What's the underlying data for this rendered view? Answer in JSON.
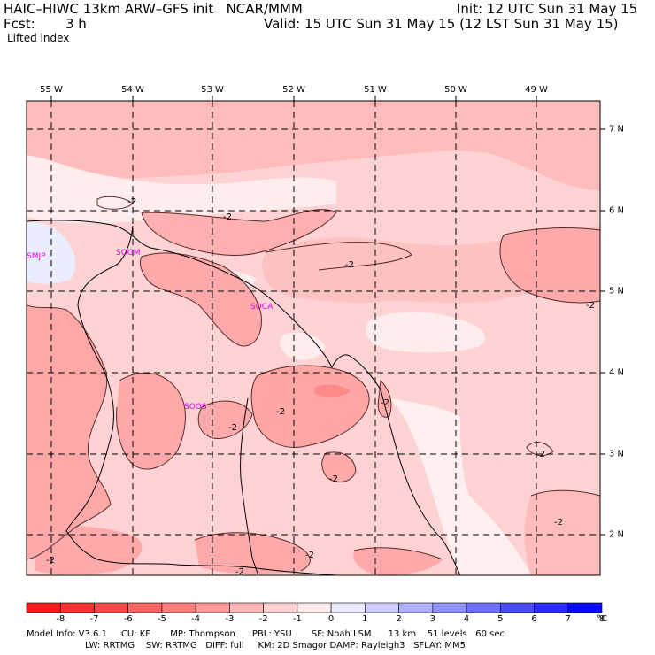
{
  "header": {
    "title": "HAIC–HIWC 13km ARW–GFS init   NCAR/MMM",
    "init": "Init: 12 UTC Sun 31 May 15",
    "fcst_label": "Fcst:",
    "fcst_value": "3 h",
    "valid": "Valid: 15 UTC Sun 31 May 15 (12 LST Sun 31 May 15)",
    "field": "Lifted index"
  },
  "map": {
    "lon_labels": [
      "55 W",
      "54 W",
      "53 W",
      "52 W",
      "51 W",
      "50 W",
      "49 W"
    ],
    "lat_labels": [
      "7 N",
      "6 N",
      "5 N",
      "4 N",
      "3 N",
      "2 N"
    ],
    "stations": [
      "SMJP",
      "SOGM",
      "SOCA",
      "SOOS"
    ],
    "contour_label": "-2"
  },
  "colorbar": {
    "labels": [
      "-8",
      "-7",
      "-6",
      "-5",
      "-4",
      "-3",
      "-2",
      "-1",
      "0",
      "1",
      "2",
      "3",
      "4",
      "5",
      "6",
      "7",
      "8"
    ],
    "unit": "°C",
    "colors": [
      "#ff1a1a",
      "#ff3030",
      "#ff4848",
      "#ff6262",
      "#ff7c7c",
      "#ff9a9a",
      "#ffb8b8",
      "#ffd3d3",
      "#ffecec",
      "#ececff",
      "#d0d0ff",
      "#b0b0ff",
      "#9090ff",
      "#6e6eff",
      "#4c4cff",
      "#2a2aff",
      "#0808ff"
    ]
  },
  "info": {
    "line1": "Model Info: V3.6.1     CU: KF       MP: Thompson      PBL: YSU       SF: Noah LSM      13 km    51 levels   60 sec",
    "line2": "LW: RRTMG    SW: RRTMG   DIFF: full     KM: 2D Smagor DAMP: Rayleigh3   SFLAY: MM5"
  }
}
